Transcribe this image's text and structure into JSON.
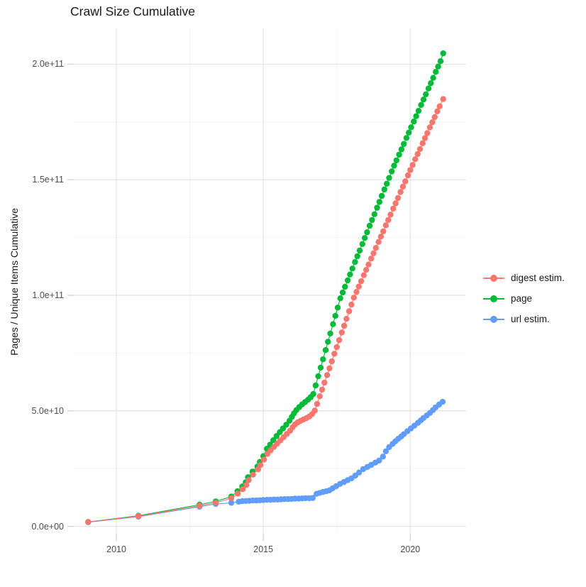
{
  "title": "Crawl Size Cumulative",
  "styles": {
    "background": "#FFFFFF",
    "grid_major": "#E6E6E6",
    "grid_minor": "#F1F1F1",
    "tick_mark": "#D6D6D6",
    "tick_text": "#4D4D4D",
    "title_text": "#1A1A1A"
  },
  "legend": {
    "position": "right",
    "items": [
      {
        "label": "digest estim.",
        "color": "#F8766D"
      },
      {
        "label": "page",
        "color": "#00BA38"
      },
      {
        "label": "url estim.",
        "color": "#619CFF"
      }
    ]
  },
  "chart_data": {
    "type": "line",
    "title": "Crawl Size Cumulative",
    "xlabel": "",
    "ylabel": "Pages / Unique Items Cumulative",
    "grid": true,
    "legend_position": "right",
    "value_note": "y values stored in billions (multiply by 1e9 for absolute counts)",
    "x_axis": {
      "tick_labels": [
        "2010",
        "2015",
        "2020"
      ],
      "tick_values": [
        2010,
        2015,
        2020
      ],
      "minor_tick_values": [
        2012.5,
        2017.5
      ],
      "range": [
        2008.55,
        2021.9
      ]
    },
    "y_axis": {
      "tick_labels": [
        "0.0e+00",
        "5.0e+10",
        "1.0e+11",
        "1.5e+11",
        "2.0e+11"
      ],
      "tick_values_e9": [
        0,
        50,
        100,
        150,
        200
      ],
      "minor_tick_values_e9": [
        25,
        75,
        125,
        175
      ],
      "range_e9": [
        -3.5,
        215.5
      ]
    },
    "draw_order": [
      2,
      1,
      0
    ],
    "series": [
      {
        "name": "digest estim.",
        "color": "#F8766D",
        "points": [
          [
            2009.04,
            1.9
          ],
          [
            2010.75,
            4.4
          ],
          [
            2012.83,
            8.9
          ],
          [
            2013.38,
            10.2
          ],
          [
            2013.91,
            12.2
          ],
          [
            2014.13,
            14.2
          ],
          [
            2014.3,
            16.1
          ],
          [
            2014.42,
            17.9
          ],
          [
            2014.5,
            20.0
          ],
          [
            2014.65,
            22.4
          ],
          [
            2014.82,
            24.7
          ],
          [
            2014.9,
            26.5
          ],
          [
            2015.02,
            28.9
          ],
          [
            2015.14,
            31.4
          ],
          [
            2015.25,
            32.9
          ],
          [
            2015.36,
            34.4
          ],
          [
            2015.47,
            35.8
          ],
          [
            2015.58,
            37.2
          ],
          [
            2015.69,
            38.6
          ],
          [
            2015.8,
            40.0
          ],
          [
            2015.91,
            41.4
          ],
          [
            2016.0,
            42.9
          ],
          [
            2016.08,
            44.1
          ],
          [
            2016.17,
            45.0
          ],
          [
            2016.27,
            45.7
          ],
          [
            2016.37,
            46.3
          ],
          [
            2016.47,
            46.9
          ],
          [
            2016.57,
            47.6
          ],
          [
            2016.66,
            48.6
          ],
          [
            2016.75,
            50.1
          ],
          [
            2016.83,
            53.0
          ],
          [
            2016.92,
            56.3
          ],
          [
            2017.0,
            59.2
          ],
          [
            2017.08,
            62.2
          ],
          [
            2017.17,
            65.5
          ],
          [
            2017.25,
            68.4
          ],
          [
            2017.33,
            71.4
          ],
          [
            2017.42,
            74.7
          ],
          [
            2017.5,
            77.6
          ],
          [
            2017.58,
            80.6
          ],
          [
            2017.67,
            83.9
          ],
          [
            2017.75,
            86.8
          ],
          [
            2017.83,
            89.8
          ],
          [
            2017.92,
            93.1
          ],
          [
            2018.0,
            96.0
          ],
          [
            2018.08,
            99.0
          ],
          [
            2018.17,
            101.5
          ],
          [
            2018.25,
            103.8
          ],
          [
            2018.33,
            106.1
          ],
          [
            2018.42,
            108.7
          ],
          [
            2018.5,
            111.0
          ],
          [
            2018.58,
            113.3
          ],
          [
            2018.67,
            115.9
          ],
          [
            2018.75,
            118.2
          ],
          [
            2018.83,
            120.5
          ],
          [
            2018.92,
            123.1
          ],
          [
            2019.0,
            125.4
          ],
          [
            2019.08,
            127.7
          ],
          [
            2019.17,
            130.3
          ],
          [
            2019.25,
            132.6
          ],
          [
            2019.33,
            134.9
          ],
          [
            2019.42,
            137.5
          ],
          [
            2019.5,
            139.8
          ],
          [
            2019.58,
            142.1
          ],
          [
            2019.67,
            144.7
          ],
          [
            2019.75,
            147.0
          ],
          [
            2019.83,
            149.3
          ],
          [
            2019.92,
            151.9
          ],
          [
            2020.0,
            154.2
          ],
          [
            2020.08,
            156.4
          ],
          [
            2020.17,
            158.9
          ],
          [
            2020.25,
            161.1
          ],
          [
            2020.33,
            163.3
          ],
          [
            2020.42,
            165.8
          ],
          [
            2020.5,
            168.0
          ],
          [
            2020.58,
            170.2
          ],
          [
            2020.67,
            172.7
          ],
          [
            2020.75,
            174.9
          ],
          [
            2020.83,
            177.1
          ],
          [
            2020.92,
            179.6
          ],
          [
            2021.0,
            181.8
          ],
          [
            2021.12,
            184.9
          ]
        ]
      },
      {
        "name": "page",
        "color": "#00BA38",
        "points": [
          [
            2009.04,
            1.9
          ],
          [
            2010.75,
            4.6
          ],
          [
            2012.83,
            9.4
          ],
          [
            2013.38,
            10.8
          ],
          [
            2013.91,
            12.9
          ],
          [
            2014.12,
            15.2
          ],
          [
            2014.28,
            17.3
          ],
          [
            2014.4,
            19.1
          ],
          [
            2014.48,
            21.3
          ],
          [
            2014.63,
            23.7
          ],
          [
            2014.8,
            25.9
          ],
          [
            2014.88,
            27.9
          ],
          [
            2015.0,
            30.4
          ],
          [
            2015.12,
            33.6
          ],
          [
            2015.23,
            35.4
          ],
          [
            2015.34,
            37.3
          ],
          [
            2015.45,
            39.1
          ],
          [
            2015.56,
            40.8
          ],
          [
            2015.67,
            42.4
          ],
          [
            2015.78,
            44.0
          ],
          [
            2015.89,
            45.7
          ],
          [
            2015.97,
            47.4
          ],
          [
            2016.04,
            48.9
          ],
          [
            2016.12,
            50.3
          ],
          [
            2016.22,
            51.6
          ],
          [
            2016.32,
            52.8
          ],
          [
            2016.42,
            53.8
          ],
          [
            2016.52,
            54.8
          ],
          [
            2016.61,
            55.9
          ],
          [
            2016.7,
            57.3
          ],
          [
            2016.78,
            61.0
          ],
          [
            2016.87,
            65.0
          ],
          [
            2016.95,
            68.7
          ],
          [
            2017.03,
            72.3
          ],
          [
            2017.12,
            76.3
          ],
          [
            2017.2,
            79.9
          ],
          [
            2017.28,
            83.5
          ],
          [
            2017.37,
            87.5
          ],
          [
            2017.45,
            91.1
          ],
          [
            2017.53,
            94.7
          ],
          [
            2017.62,
            98.7
          ],
          [
            2017.7,
            101.2
          ],
          [
            2017.78,
            103.7
          ],
          [
            2017.87,
            106.5
          ],
          [
            2017.95,
            109.0
          ],
          [
            2018.03,
            111.6
          ],
          [
            2018.12,
            114.4
          ],
          [
            2018.2,
            116.9
          ],
          [
            2018.28,
            119.4
          ],
          [
            2018.37,
            122.2
          ],
          [
            2018.45,
            124.8
          ],
          [
            2018.53,
            127.3
          ],
          [
            2018.62,
            130.1
          ],
          [
            2018.7,
            132.6
          ],
          [
            2018.78,
            135.1
          ],
          [
            2018.87,
            137.9
          ],
          [
            2018.95,
            140.4
          ],
          [
            2019.03,
            143.0
          ],
          [
            2019.12,
            145.8
          ],
          [
            2019.2,
            148.3
          ],
          [
            2019.28,
            150.8
          ],
          [
            2019.37,
            153.6
          ],
          [
            2019.45,
            156.1
          ],
          [
            2019.53,
            158.4
          ],
          [
            2019.62,
            160.9
          ],
          [
            2019.7,
            163.2
          ],
          [
            2019.78,
            165.5
          ],
          [
            2019.87,
            168.1
          ],
          [
            2019.95,
            170.4
          ],
          [
            2020.03,
            172.7
          ],
          [
            2020.12,
            175.2
          ],
          [
            2020.2,
            177.5
          ],
          [
            2020.28,
            179.8
          ],
          [
            2020.37,
            182.4
          ],
          [
            2020.45,
            184.7
          ],
          [
            2020.53,
            187.0
          ],
          [
            2020.62,
            189.5
          ],
          [
            2020.7,
            191.8
          ],
          [
            2020.78,
            194.1
          ],
          [
            2020.87,
            196.7
          ],
          [
            2020.95,
            199.0
          ],
          [
            2021.03,
            201.3
          ],
          [
            2021.12,
            204.7
          ]
        ]
      },
      {
        "name": "url estim.",
        "color": "#619CFF",
        "points": [
          [
            2009.04,
            1.8
          ],
          [
            2010.75,
            4.2
          ],
          [
            2012.83,
            8.5
          ],
          [
            2013.38,
            9.7
          ],
          [
            2013.91,
            10.2
          ],
          [
            2014.16,
            10.7
          ],
          [
            2014.28,
            10.9
          ],
          [
            2014.4,
            11.0
          ],
          [
            2014.52,
            11.1
          ],
          [
            2014.64,
            11.2
          ],
          [
            2014.76,
            11.2
          ],
          [
            2014.88,
            11.3
          ],
          [
            2015.0,
            11.4
          ],
          [
            2015.12,
            11.5
          ],
          [
            2015.24,
            11.5
          ],
          [
            2015.36,
            11.6
          ],
          [
            2015.48,
            11.6
          ],
          [
            2015.6,
            11.7
          ],
          [
            2015.72,
            11.8
          ],
          [
            2015.84,
            11.8
          ],
          [
            2015.96,
            11.9
          ],
          [
            2016.08,
            12.0
          ],
          [
            2016.2,
            12.0
          ],
          [
            2016.32,
            12.1
          ],
          [
            2016.44,
            12.2
          ],
          [
            2016.56,
            12.2
          ],
          [
            2016.68,
            12.3
          ],
          [
            2016.81,
            14.1
          ],
          [
            2016.92,
            14.5
          ],
          [
            2017.03,
            14.9
          ],
          [
            2017.14,
            15.2
          ],
          [
            2017.25,
            15.6
          ],
          [
            2017.36,
            16.5
          ],
          [
            2017.48,
            17.4
          ],
          [
            2017.61,
            18.4
          ],
          [
            2017.74,
            19.2
          ],
          [
            2017.87,
            20.0
          ],
          [
            2018.0,
            20.8
          ],
          [
            2018.13,
            22.0
          ],
          [
            2018.26,
            23.3
          ],
          [
            2018.4,
            24.8
          ],
          [
            2018.54,
            25.7
          ],
          [
            2018.67,
            26.6
          ],
          [
            2018.81,
            27.6
          ],
          [
            2018.94,
            28.5
          ],
          [
            2019.07,
            30.2
          ],
          [
            2019.17,
            32.5
          ],
          [
            2019.28,
            34.3
          ],
          [
            2019.4,
            35.7
          ],
          [
            2019.49,
            36.8
          ],
          [
            2019.59,
            37.9
          ],
          [
            2019.69,
            38.9
          ],
          [
            2019.78,
            39.9
          ],
          [
            2019.9,
            41.2
          ],
          [
            2020.02,
            42.4
          ],
          [
            2020.14,
            43.6
          ],
          [
            2020.26,
            44.8
          ],
          [
            2020.36,
            45.9
          ],
          [
            2020.45,
            46.9
          ],
          [
            2020.56,
            48.0
          ],
          [
            2020.67,
            49.1
          ],
          [
            2020.77,
            50.3
          ],
          [
            2020.86,
            51.5
          ],
          [
            2020.98,
            52.7
          ],
          [
            2021.1,
            53.9
          ]
        ]
      }
    ]
  }
}
